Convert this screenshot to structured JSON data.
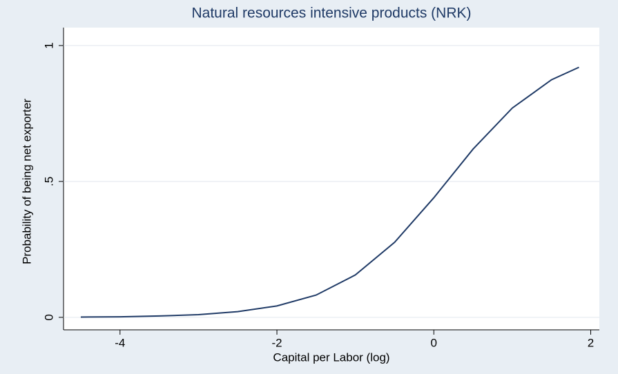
{
  "chart_data": {
    "type": "line",
    "title": "Natural resources intensive products (NRK)",
    "x_label": "Capital per Labor (log)",
    "y_label": "Probability of being net exporter",
    "x": [
      -4.5,
      -4,
      -3.5,
      -3,
      -2.5,
      -2,
      -1.5,
      -1,
      -0.5,
      0,
      0.5,
      1,
      1.5,
      1.85
    ],
    "series": [
      {
        "name": "Probability",
        "color": "#1f3a66",
        "values": [
          0.001,
          0.002,
          0.005,
          0.01,
          0.021,
          0.042,
          0.082,
          0.156,
          0.276,
          0.44,
          0.619,
          0.77,
          0.874,
          0.92
        ]
      }
    ],
    "xlim": [
      -4.72,
      2.11
    ],
    "xticks": [
      -4,
      -2,
      0,
      2
    ],
    "ylim": [
      -0.046,
      1.066
    ],
    "yticks": [
      0,
      {
        "value": 0.5,
        "label": ".5"
      },
      1
    ],
    "grid": true
  }
}
